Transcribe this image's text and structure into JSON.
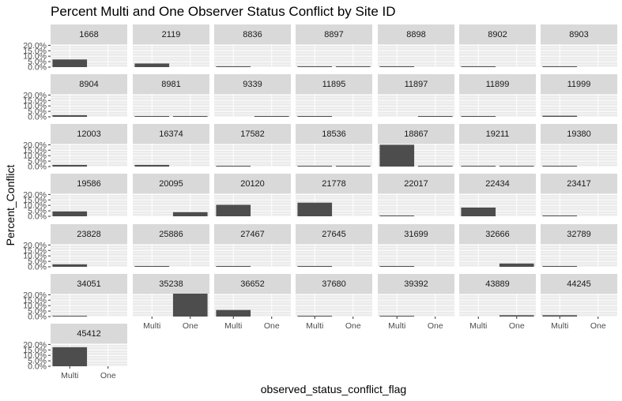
{
  "chart_data": {
    "type": "bar",
    "title": "Percent Multi and One Observer Status Conflict by Site ID",
    "xlabel": "observed_status_conflict_flag",
    "ylabel": "Percent_Conflict",
    "categories": [
      "Multi",
      "One"
    ],
    "y_ticks": [
      "0.0%",
      "5.0%",
      "10.0%",
      "15.0%",
      "20.0%"
    ],
    "ylim": [
      0,
      0.21
    ],
    "facet_columns": 7,
    "grid": true,
    "colors": {
      "bar": "#4d4d4d",
      "panel": "#ebebeb",
      "strip": "#d9d9d9",
      "gridline": "#ffffff"
    },
    "panels": [
      {
        "site": "1668",
        "values": [
          0.07,
          null
        ]
      },
      {
        "site": "2119",
        "values": [
          0.033,
          null
        ]
      },
      {
        "site": "8836",
        "values": [
          0.002,
          null
        ]
      },
      {
        "site": "8897",
        "values": [
          0.002,
          0.002
        ]
      },
      {
        "site": "8898",
        "values": [
          0.002,
          null
        ]
      },
      {
        "site": "8902",
        "values": [
          0.002,
          null
        ]
      },
      {
        "site": "8903",
        "values": [
          0.002,
          null
        ]
      },
      {
        "site": "8904",
        "values": [
          0.015,
          null
        ]
      },
      {
        "site": "8981",
        "values": [
          0.002,
          0.002
        ]
      },
      {
        "site": "9339",
        "values": [
          null,
          0.001
        ]
      },
      {
        "site": "11895",
        "values": [
          0.002,
          null
        ]
      },
      {
        "site": "11897",
        "values": [
          null,
          0.001
        ]
      },
      {
        "site": "11899",
        "values": [
          0.002,
          null
        ]
      },
      {
        "site": "11999",
        "values": [
          0.01,
          null
        ]
      },
      {
        "site": "12003",
        "values": [
          0.015,
          null
        ]
      },
      {
        "site": "16374",
        "values": [
          0.015,
          null
        ]
      },
      {
        "site": "17582",
        "values": [
          0.007,
          null
        ]
      },
      {
        "site": "18536",
        "values": [
          0.007,
          0.002
        ]
      },
      {
        "site": "18867",
        "values": [
          0.2,
          0.004
        ]
      },
      {
        "site": "19211",
        "values": [
          0.002,
          0.002
        ]
      },
      {
        "site": "19380",
        "values": [
          0.002,
          null
        ]
      },
      {
        "site": "19586",
        "values": [
          0.045,
          null
        ]
      },
      {
        "site": "20095",
        "values": [
          null,
          0.038
        ]
      },
      {
        "site": "20120",
        "values": [
          0.105,
          null
        ]
      },
      {
        "site": "21778",
        "values": [
          0.125,
          null
        ]
      },
      {
        "site": "22017",
        "values": [
          0.001,
          null
        ]
      },
      {
        "site": "22434",
        "values": [
          0.08,
          null
        ]
      },
      {
        "site": "23417",
        "values": [
          0.001,
          null
        ]
      },
      {
        "site": "23828",
        "values": [
          0.023,
          null
        ]
      },
      {
        "site": "25886",
        "values": [
          0.001,
          null
        ]
      },
      {
        "site": "27467",
        "values": [
          0.002,
          null
        ]
      },
      {
        "site": "27645",
        "values": [
          0.002,
          null
        ]
      },
      {
        "site": "31699",
        "values": [
          0.001,
          null
        ]
      },
      {
        "site": "32666",
        "values": [
          null,
          0.03
        ]
      },
      {
        "site": "32789",
        "values": [
          0.001,
          null
        ]
      },
      {
        "site": "34051",
        "values": [
          0.001,
          null
        ]
      },
      {
        "site": "35238",
        "values": [
          null,
          0.21
        ]
      },
      {
        "site": "36652",
        "values": [
          0.06,
          null
        ]
      },
      {
        "site": "37680",
        "values": [
          0.004,
          null
        ]
      },
      {
        "site": "39392",
        "values": [
          0.004,
          null
        ]
      },
      {
        "site": "43889",
        "values": [
          null,
          0.012
        ]
      },
      {
        "site": "44245",
        "values": [
          0.012,
          null
        ]
      },
      {
        "site": "45412",
        "values": [
          0.175,
          null
        ]
      }
    ]
  }
}
